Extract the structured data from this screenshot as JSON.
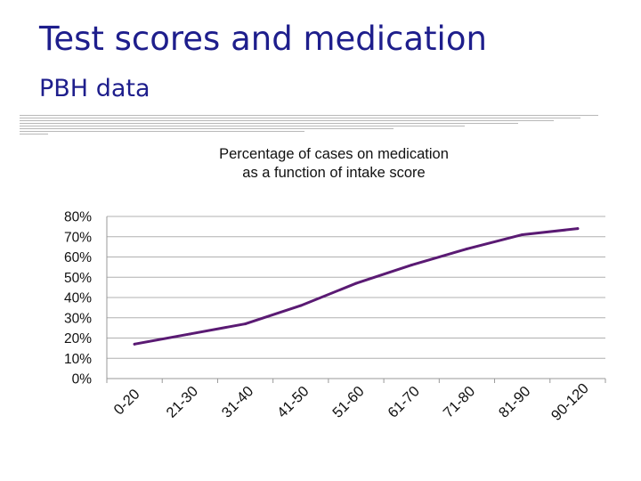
{
  "slide": {
    "title": "Test scores and medication",
    "subtitle": "PBH data"
  },
  "colors": {
    "title": "#1e1e8c",
    "series_line": "#5a1a73",
    "gridline": "#b0b0b0",
    "decorative_rules": "#b8b8b8"
  },
  "chart_data": {
    "type": "line",
    "title_line1": "Percentage of cases on medication",
    "title_line2": "as a function of intake score",
    "xlabel": "",
    "ylabel": "",
    "categories": [
      "0-20",
      "21-30",
      "31-40",
      "41-50",
      "51-60",
      "61-70",
      "71-80",
      "81-90",
      "90-120"
    ],
    "values": [
      0.17,
      0.22,
      0.27,
      0.36,
      0.47,
      0.56,
      0.64,
      0.71,
      0.74
    ],
    "ylim": [
      0,
      0.8
    ],
    "yticks": [
      0,
      0.1,
      0.2,
      0.3,
      0.4,
      0.5,
      0.6,
      0.7,
      0.8
    ],
    "ytick_labels": [
      "0%",
      "10%",
      "20%",
      "30%",
      "40%",
      "50%",
      "60%",
      "70%",
      "80%"
    ],
    "grid": "horizontal",
    "legend": "none"
  }
}
